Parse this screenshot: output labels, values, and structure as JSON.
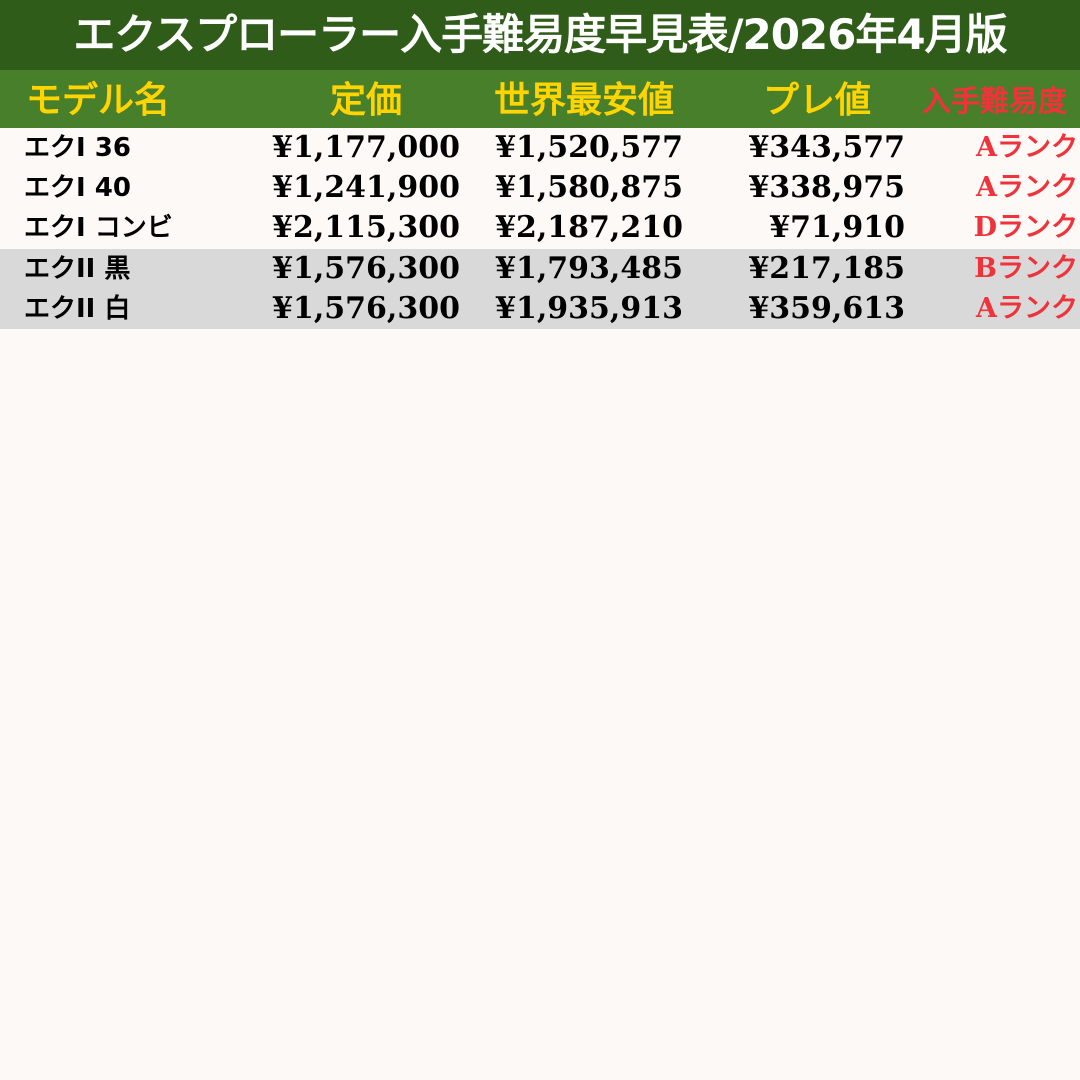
{
  "title": "エクスプローラー入手難易度早見表/2026年4月版",
  "headers": {
    "model": "モデル名",
    "list_price": "定価",
    "lowest_price": "世界最安値",
    "premium": "プレ値",
    "difficulty": "入手難易度"
  },
  "colors": {
    "title_bg": "#2f5c19",
    "header_bg": "#477f2a",
    "header_text": "#ffd400",
    "difficulty_text": "#f0323a",
    "alt_row": "#d9d9d9"
  },
  "rows": [
    {
      "model": "エクI 36",
      "list_price": "¥1,177,000",
      "lowest_price": "¥1,520,577",
      "premium": "¥343,577",
      "difficulty": "Aランク"
    },
    {
      "model": "エクI 40",
      "list_price": "¥1,241,900",
      "lowest_price": "¥1,580,875",
      "premium": "¥338,975",
      "difficulty": "Aランク"
    },
    {
      "model": "エクI コンビ",
      "list_price": "¥2,115,300",
      "lowest_price": "¥2,187,210",
      "premium": "¥71,910",
      "difficulty": "Dランク"
    },
    {
      "model": "エクII 黒",
      "list_price": "¥1,576,300",
      "lowest_price": "¥1,793,485",
      "premium": "¥217,185",
      "difficulty": "Bランク"
    },
    {
      "model": "エクII 白",
      "list_price": "¥1,576,300",
      "lowest_price": "¥1,935,913",
      "premium": "¥359,613",
      "difficulty": "Aランク"
    }
  ]
}
